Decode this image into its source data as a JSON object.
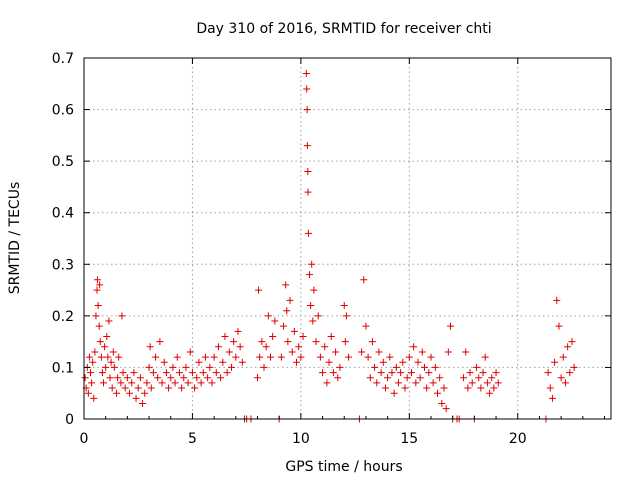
{
  "chart_data": {
    "type": "scatter",
    "title": "Day 310 of 2016, SRMTID for receiver chti",
    "xlabel": "GPS time / hours",
    "ylabel": "SRMTID / TECUs",
    "xlim": [
      0,
      24.3
    ],
    "ylim": [
      0,
      0.7
    ],
    "x_ticks": [
      0,
      5,
      10,
      15,
      20
    ],
    "x_tick_labels": [
      "0",
      "5",
      "10",
      "15",
      "20"
    ],
    "y_ticks": [
      0,
      0.1,
      0.2,
      0.3,
      0.4,
      0.5,
      0.6,
      0.7
    ],
    "y_tick_labels": [
      "0",
      "0.1",
      "0.2",
      "0.3",
      "0.4",
      "0.5",
      "0.6",
      "0.7"
    ],
    "grid": true,
    "legend": "none",
    "marker": "plus",
    "color": "#e00000",
    "series": [
      {
        "name": "SRMTID",
        "points": [
          [
            0.05,
            0.08
          ],
          [
            0.1,
            0.06
          ],
          [
            0.15,
            0.1
          ],
          [
            0.2,
            0.05
          ],
          [
            0.25,
            0.12
          ],
          [
            0.3,
            0.09
          ],
          [
            0.35,
            0.07
          ],
          [
            0.4,
            0.11
          ],
          [
            0.45,
            0.04
          ],
          [
            0.5,
            0.13
          ],
          [
            0.55,
            0.2
          ],
          [
            0.6,
            0.25
          ],
          [
            0.62,
            0.27
          ],
          [
            0.65,
            0.22
          ],
          [
            0.7,
            0.18
          ],
          [
            0.72,
            0.26
          ],
          [
            0.75,
            0.15
          ],
          [
            0.8,
            0.12
          ],
          [
            0.85,
            0.09
          ],
          [
            0.9,
            0.07
          ],
          [
            0.95,
            0.14
          ],
          [
            1.0,
            0.1
          ],
          [
            1.05,
            0.16
          ],
          [
            1.1,
            0.12
          ],
          [
            1.15,
            0.19
          ],
          [
            1.2,
            0.08
          ],
          [
            1.25,
            0.11
          ],
          [
            1.3,
            0.06
          ],
          [
            1.35,
            0.13
          ],
          [
            1.4,
            0.1
          ],
          [
            1.5,
            0.05
          ],
          [
            1.55,
            0.08
          ],
          [
            1.6,
            0.12
          ],
          [
            1.7,
            0.07
          ],
          [
            1.75,
            0.2
          ],
          [
            1.8,
            0.09
          ],
          [
            1.9,
            0.06
          ],
          [
            2.0,
            0.08
          ],
          [
            2.1,
            0.05
          ],
          [
            2.2,
            0.07
          ],
          [
            2.3,
            0.09
          ],
          [
            2.4,
            0.04
          ],
          [
            2.5,
            0.06
          ],
          [
            2.6,
            0.08
          ],
          [
            2.7,
            0.03
          ],
          [
            2.8,
            0.05
          ],
          [
            2.9,
            0.07
          ],
          [
            3.0,
            0.1
          ],
          [
            3.05,
            0.14
          ],
          [
            3.1,
            0.06
          ],
          [
            3.2,
            0.09
          ],
          [
            3.3,
            0.12
          ],
          [
            3.4,
            0.08
          ],
          [
            3.5,
            0.15
          ],
          [
            3.6,
            0.07
          ],
          [
            3.7,
            0.11
          ],
          [
            3.8,
            0.09
          ],
          [
            3.9,
            0.06
          ],
          [
            4.0,
            0.08
          ],
          [
            4.1,
            0.1
          ],
          [
            4.2,
            0.07
          ],
          [
            4.3,
            0.12
          ],
          [
            4.4,
            0.09
          ],
          [
            4.5,
            0.06
          ],
          [
            4.6,
            0.08
          ],
          [
            4.7,
            0.1
          ],
          [
            4.8,
            0.07
          ],
          [
            4.9,
            0.13
          ],
          [
            5.0,
            0.09
          ],
          [
            5.1,
            0.06
          ],
          [
            5.2,
            0.08
          ],
          [
            5.3,
            0.11
          ],
          [
            5.4,
            0.07
          ],
          [
            5.5,
            0.09
          ],
          [
            5.6,
            0.12
          ],
          [
            5.7,
            0.08
          ],
          [
            5.8,
            0.1
          ],
          [
            5.9,
            0.07
          ],
          [
            6.0,
            0.12
          ],
          [
            6.1,
            0.09
          ],
          [
            6.2,
            0.14
          ],
          [
            6.3,
            0.08
          ],
          [
            6.4,
            0.11
          ],
          [
            6.5,
            0.16
          ],
          [
            6.6,
            0.09
          ],
          [
            6.7,
            0.13
          ],
          [
            6.8,
            0.1
          ],
          [
            6.9,
            0.15
          ],
          [
            7.0,
            0.12
          ],
          [
            7.1,
            0.17
          ],
          [
            7.2,
            0.14
          ],
          [
            7.3,
            0.11
          ],
          [
            7.4,
            0.0
          ],
          [
            7.5,
            0.0
          ],
          [
            7.7,
            0.0
          ],
          [
            8.0,
            0.08
          ],
          [
            8.05,
            0.25
          ],
          [
            8.1,
            0.12
          ],
          [
            8.2,
            0.15
          ],
          [
            8.3,
            0.1
          ],
          [
            8.4,
            0.14
          ],
          [
            8.5,
            0.2
          ],
          [
            8.6,
            0.12
          ],
          [
            8.7,
            0.16
          ],
          [
            8.8,
            0.19
          ],
          [
            9.0,
            0.0
          ],
          [
            9.1,
            0.12
          ],
          [
            9.2,
            0.18
          ],
          [
            9.3,
            0.26
          ],
          [
            9.35,
            0.21
          ],
          [
            9.4,
            0.15
          ],
          [
            9.5,
            0.23
          ],
          [
            9.6,
            0.13
          ],
          [
            9.7,
            0.17
          ],
          [
            9.8,
            0.11
          ],
          [
            9.9,
            0.14
          ],
          [
            10.0,
            0.12
          ],
          [
            10.1,
            0.16
          ],
          [
            10.25,
            0.67
          ],
          [
            10.27,
            0.64
          ],
          [
            10.29,
            0.6
          ],
          [
            10.3,
            0.53
          ],
          [
            10.32,
            0.48
          ],
          [
            10.33,
            0.44
          ],
          [
            10.35,
            0.36
          ],
          [
            10.4,
            0.28
          ],
          [
            10.45,
            0.22
          ],
          [
            10.5,
            0.3
          ],
          [
            10.55,
            0.19
          ],
          [
            10.6,
            0.25
          ],
          [
            10.7,
            0.15
          ],
          [
            10.8,
            0.2
          ],
          [
            10.9,
            0.12
          ],
          [
            11.0,
            0.09
          ],
          [
            11.1,
            0.14
          ],
          [
            11.2,
            0.07
          ],
          [
            11.3,
            0.11
          ],
          [
            11.4,
            0.16
          ],
          [
            11.5,
            0.09
          ],
          [
            11.6,
            0.13
          ],
          [
            11.7,
            0.08
          ],
          [
            11.8,
            0.1
          ],
          [
            12.0,
            0.22
          ],
          [
            12.05,
            0.15
          ],
          [
            12.1,
            0.2
          ],
          [
            12.2,
            0.12
          ],
          [
            12.7,
            0.0
          ],
          [
            12.8,
            0.13
          ],
          [
            12.9,
            0.27
          ],
          [
            13.0,
            0.18
          ],
          [
            13.1,
            0.12
          ],
          [
            13.2,
            0.08
          ],
          [
            13.3,
            0.15
          ],
          [
            13.4,
            0.1
          ],
          [
            13.5,
            0.07
          ],
          [
            13.6,
            0.13
          ],
          [
            13.7,
            0.09
          ],
          [
            13.8,
            0.11
          ],
          [
            13.9,
            0.06
          ],
          [
            14.0,
            0.08
          ],
          [
            14.1,
            0.12
          ],
          [
            14.2,
            0.09
          ],
          [
            14.3,
            0.05
          ],
          [
            14.4,
            0.1
          ],
          [
            14.5,
            0.07
          ],
          [
            14.6,
            0.09
          ],
          [
            14.7,
            0.11
          ],
          [
            14.8,
            0.06
          ],
          [
            14.9,
            0.08
          ],
          [
            15.0,
            0.12
          ],
          [
            15.1,
            0.09
          ],
          [
            15.2,
            0.14
          ],
          [
            15.3,
            0.07
          ],
          [
            15.4,
            0.11
          ],
          [
            15.5,
            0.08
          ],
          [
            15.6,
            0.13
          ],
          [
            15.7,
            0.1
          ],
          [
            15.8,
            0.06
          ],
          [
            15.9,
            0.09
          ],
          [
            16.0,
            0.12
          ],
          [
            16.1,
            0.07
          ],
          [
            16.2,
            0.1
          ],
          [
            16.3,
            0.05
          ],
          [
            16.4,
            0.08
          ],
          [
            16.5,
            0.03
          ],
          [
            16.6,
            0.06
          ],
          [
            16.7,
            0.02
          ],
          [
            16.8,
            0.13
          ],
          [
            16.9,
            0.18
          ],
          [
            17.0,
            0.0
          ],
          [
            17.2,
            0.0
          ],
          [
            17.3,
            0.0
          ],
          [
            17.5,
            0.08
          ],
          [
            17.6,
            0.13
          ],
          [
            17.7,
            0.06
          ],
          [
            17.8,
            0.09
          ],
          [
            17.9,
            0.07
          ],
          [
            18.0,
            0.0
          ],
          [
            18.1,
            0.1
          ],
          [
            18.2,
            0.08
          ],
          [
            18.3,
            0.06
          ],
          [
            18.4,
            0.09
          ],
          [
            18.5,
            0.12
          ],
          [
            18.6,
            0.07
          ],
          [
            18.7,
            0.05
          ],
          [
            18.8,
            0.08
          ],
          [
            18.9,
            0.06
          ],
          [
            19.0,
            0.09
          ],
          [
            19.1,
            0.07
          ],
          [
            21.3,
            0.0
          ],
          [
            21.4,
            0.09
          ],
          [
            21.5,
            0.06
          ],
          [
            21.6,
            0.04
          ],
          [
            21.7,
            0.11
          ],
          [
            21.8,
            0.23
          ],
          [
            21.9,
            0.18
          ],
          [
            22.0,
            0.08
          ],
          [
            22.1,
            0.12
          ],
          [
            22.2,
            0.07
          ],
          [
            22.3,
            0.14
          ],
          [
            22.4,
            0.09
          ],
          [
            22.5,
            0.15
          ],
          [
            22.6,
            0.1
          ]
        ]
      }
    ]
  }
}
